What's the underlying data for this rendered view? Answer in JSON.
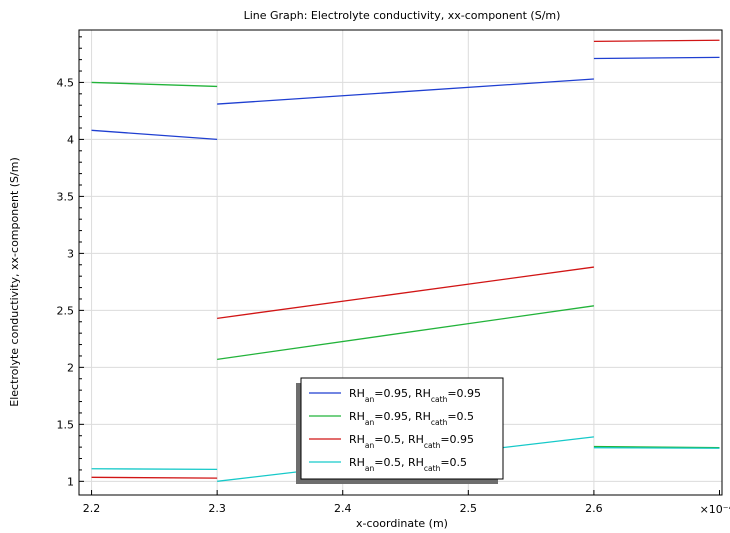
{
  "chart_data": {
    "type": "line",
    "title": "Line Graph: Electrolyte conductivity, xx-component (S/m)",
    "xlabel": "x-coordinate (m)",
    "ylabel": "Electrolyte conductivity, xx-component (S/m)",
    "x_multiplier": "×10⁻⁴",
    "xlim": [
      2.19,
      2.702
    ],
    "ylim": [
      0.88,
      4.96
    ],
    "x_ticks": [
      2.2,
      2.3,
      2.4,
      2.5,
      2.6
    ],
    "x_tick_labels": [
      "2.2",
      "2.3",
      "2.4",
      "2.5",
      "2.6"
    ],
    "y_ticks": [
      1,
      1.5,
      2,
      2.5,
      3,
      3.5,
      4,
      4.5
    ],
    "y_tick_labels": [
      "1",
      "1.5",
      "2",
      "2.5",
      "3",
      "3.5",
      "4",
      "4.5"
    ],
    "grid": true,
    "legend_position": "bottom-center",
    "series": [
      {
        "legend": {
          "prefix": "RH",
          "sub1": "an",
          "mid": "=0.95, RH",
          "sub2": "cath",
          "suffix": "=0.95"
        },
        "color": "#1f3fd1",
        "segments": [
          [
            [
              2.2,
              4.08
            ],
            [
              2.3,
              4.0
            ]
          ],
          [
            [
              2.3,
              4.31
            ],
            [
              2.6,
              4.53
            ]
          ],
          [
            [
              2.6,
              4.71
            ],
            [
              2.7,
              4.72
            ]
          ]
        ]
      },
      {
        "legend": {
          "prefix": "RH",
          "sub1": "an",
          "mid": "=0.95, RH",
          "sub2": "cath",
          "suffix": "=0.5"
        },
        "color": "#22b33a",
        "segments": [
          [
            [
              2.2,
              4.5
            ],
            [
              2.3,
              4.465
            ]
          ],
          [
            [
              2.3,
              2.07
            ],
            [
              2.6,
              2.54
            ]
          ],
          [
            [
              2.6,
              1.305
            ],
            [
              2.7,
              1.295
            ]
          ]
        ]
      },
      {
        "legend": {
          "prefix": "RH",
          "sub1": "an",
          "mid": "=0.5, RH",
          "sub2": "cath",
          "suffix": "=0.95"
        },
        "color": "#d11515",
        "segments": [
          [
            [
              2.2,
              1.035
            ],
            [
              2.3,
              1.028
            ]
          ],
          [
            [
              2.3,
              2.43
            ],
            [
              2.6,
              2.88
            ]
          ],
          [
            [
              2.6,
              4.86
            ],
            [
              2.7,
              4.87
            ]
          ]
        ]
      },
      {
        "legend": {
          "prefix": "RH",
          "sub1": "an",
          "mid": "=0.5, RH",
          "sub2": "cath",
          "suffix": "=0.5"
        },
        "color": "#16c9c9",
        "segments": [
          [
            [
              2.2,
              1.11
            ],
            [
              2.3,
              1.105
            ]
          ],
          [
            [
              2.3,
              1.0
            ],
            [
              2.6,
              1.39
            ]
          ],
          [
            [
              2.6,
              1.295
            ],
            [
              2.7,
              1.29
            ]
          ]
        ]
      }
    ]
  }
}
